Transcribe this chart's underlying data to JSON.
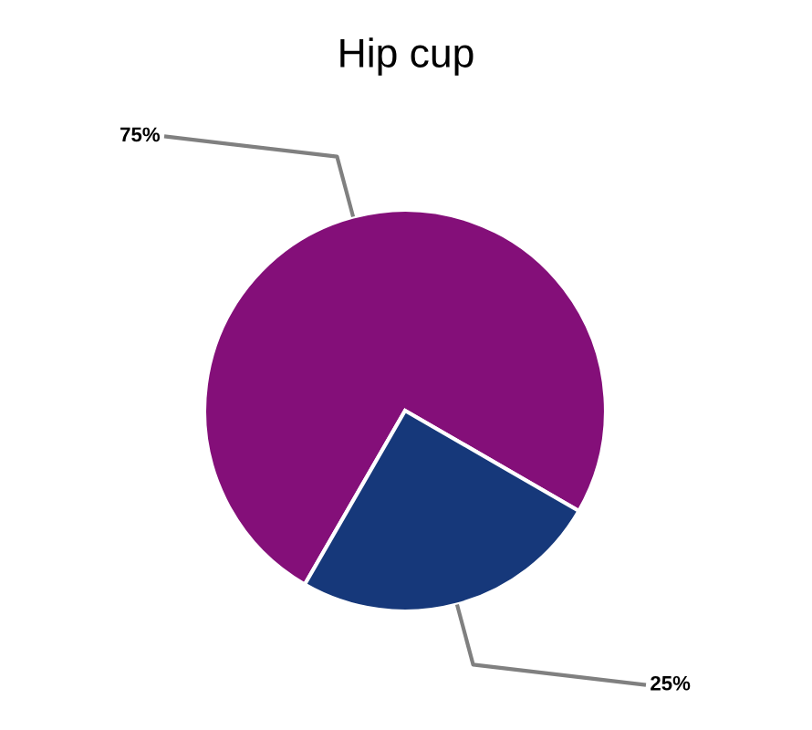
{
  "chart_data": {
    "type": "pie",
    "title": "Hip cup",
    "categories": [
      null,
      null
    ],
    "values": [
      75,
      25
    ],
    "colors": [
      "#840f79",
      "#16387a"
    ],
    "value_labels": [
      "75%",
      "25%"
    ]
  }
}
